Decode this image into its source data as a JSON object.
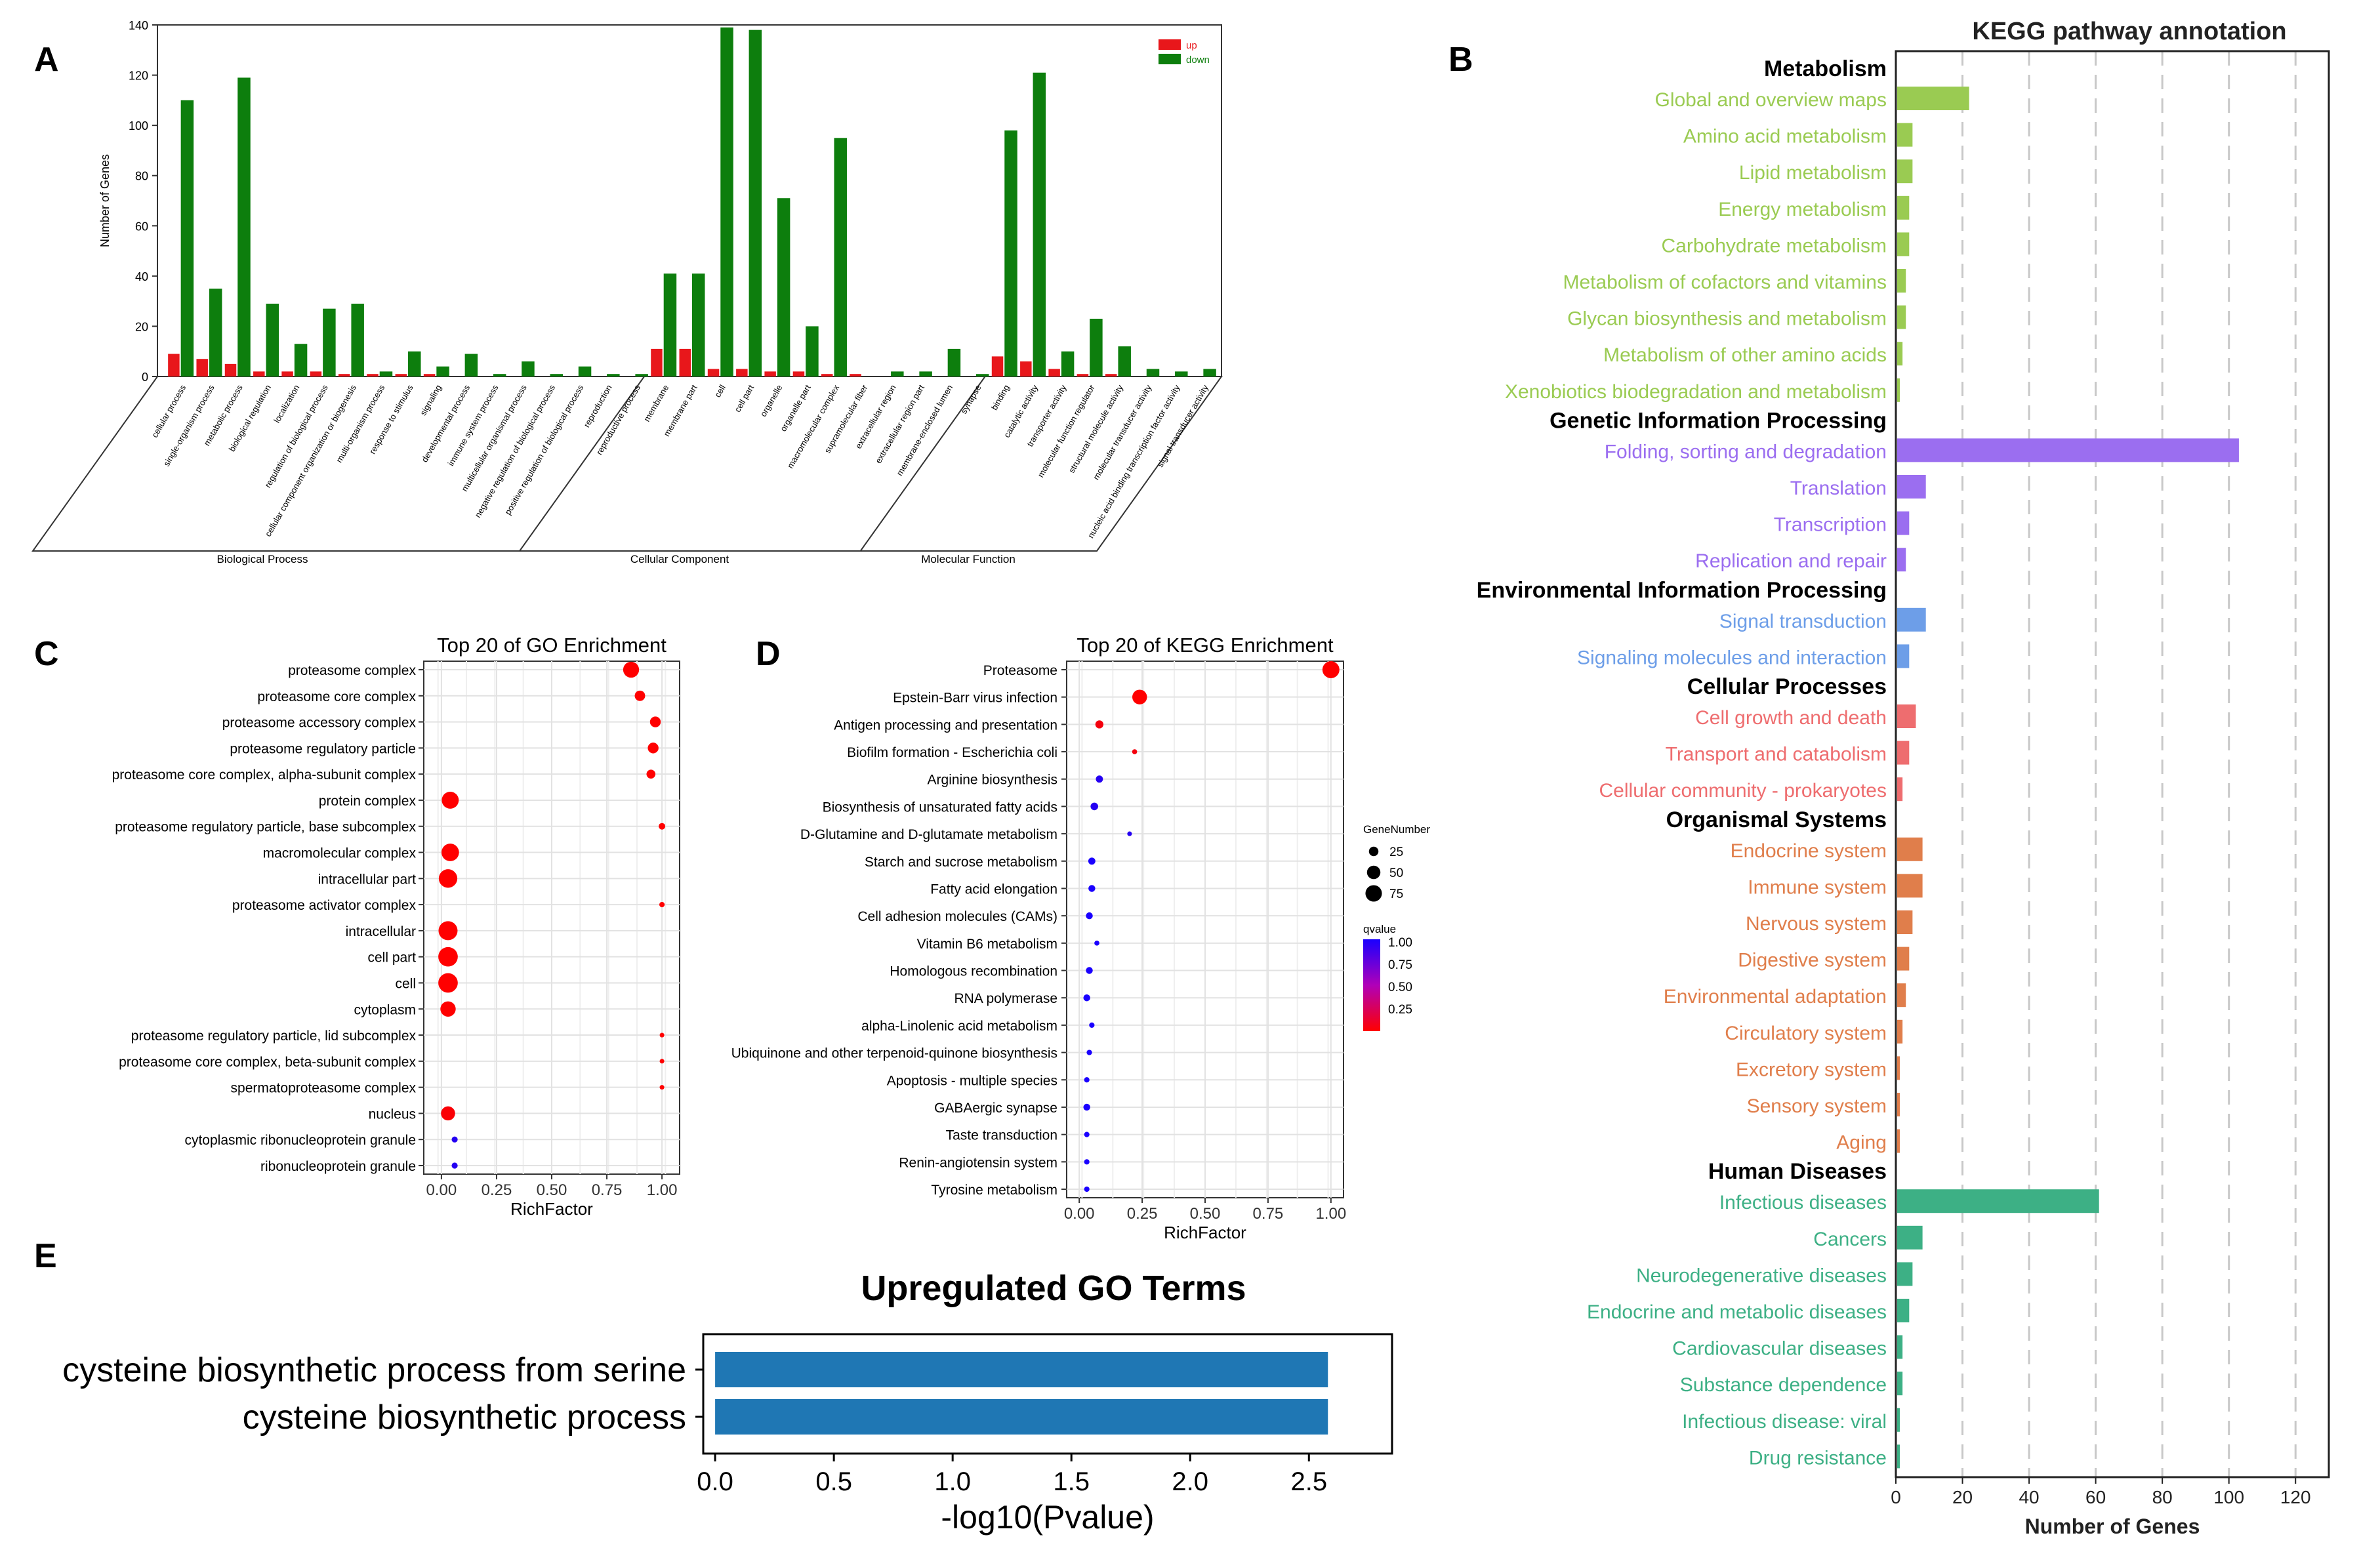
{
  "panel_labels": [
    "A",
    "B",
    "C",
    "D",
    "E"
  ],
  "colors": {
    "up": "#e8171b",
    "down": "#0d7e0d",
    "metabolism": "#9acb52",
    "genetic": "#9b6ef0",
    "environmental": "#6d9ee8",
    "cellular": "#ee6d6f",
    "organismal": "#e07e4b",
    "human": "#3db085",
    "go_bar": "#1f77b4",
    "dot_low": "#ff0000",
    "dot_high": "#1a00ff"
  },
  "chart_data": [
    {
      "id": "A",
      "type": "bar",
      "ylabel": "Number of Genes",
      "ylim": [
        0,
        140
      ],
      "yticks": [
        "0",
        "20",
        "40",
        "60",
        "80",
        "100",
        "120",
        "140"
      ],
      "legend": [
        "up",
        "down"
      ],
      "groups": [
        "Biological Process",
        "Cellular Component",
        "Molecular Function"
      ],
      "categories": [
        "cellular process",
        "single-organism process",
        "metabolic process",
        "biological regulation",
        "localization",
        "regulation of biological process",
        "cellular component organization or biogenesis",
        "multi-organism process",
        "response to stimulus",
        "signaling",
        "developmental process",
        "immune system process",
        "multicellular organismal process",
        "negative regulation of biological process",
        "positive regulation of biological process",
        "reproduction",
        "reproductive process",
        "membrane",
        "membrane part",
        "cell",
        "cell part",
        "organelle",
        "organelle part",
        "macromolecular complex",
        "supramolecular fiber",
        "extracellular region",
        "extracellular region part",
        "membrane-enclosed lumen",
        "synapse",
        "binding",
        "catalytic activity",
        "transporter activity",
        "molecular function regulator",
        "structural molecule activity",
        "molecular transducer activity",
        "nucleic acid binding transcription factor activity",
        "signal transducer activity"
      ],
      "category_group": [
        0,
        0,
        0,
        0,
        0,
        0,
        0,
        0,
        0,
        0,
        0,
        0,
        0,
        0,
        0,
        0,
        0,
        1,
        1,
        1,
        1,
        1,
        1,
        1,
        1,
        1,
        1,
        1,
        1,
        2,
        2,
        2,
        2,
        2,
        2,
        2,
        2
      ],
      "series": [
        {
          "name": "up",
          "values": [
            9,
            7,
            5,
            2,
            2,
            2,
            1,
            1,
            1,
            1,
            0,
            0,
            0,
            0,
            0,
            0,
            0,
            11,
            11,
            3,
            3,
            2,
            2,
            1,
            1,
            0,
            0,
            0,
            0,
            8,
            6,
            3,
            1,
            1,
            0,
            0,
            0
          ]
        },
        {
          "name": "down",
          "values": [
            110,
            35,
            119,
            29,
            13,
            27,
            29,
            2,
            10,
            4,
            9,
            1,
            6,
            1,
            4,
            1,
            1,
            41,
            41,
            139,
            138,
            71,
            20,
            95,
            0,
            2,
            2,
            11,
            1,
            98,
            121,
            10,
            23,
            12,
            3,
            2,
            3
          ]
        }
      ]
    },
    {
      "id": "B",
      "type": "bar",
      "title": "KEGG pathway annotation",
      "xlabel": "Number of Genes",
      "xlim": [
        0,
        130
      ],
      "xticks": [
        "0",
        "20",
        "40",
        "60",
        "80",
        "100",
        "120"
      ],
      "groups": [
        {
          "name": "Metabolism",
          "color_key": "metabolism",
          "items": [
            {
              "label": "Global and overview maps",
              "value": 22
            },
            {
              "label": "Amino acid metabolism",
              "value": 5
            },
            {
              "label": "Lipid metabolism",
              "value": 5
            },
            {
              "label": "Energy metabolism",
              "value": 4
            },
            {
              "label": "Carbohydrate metabolism",
              "value": 4
            },
            {
              "label": "Metabolism of cofactors and vitamins",
              "value": 3
            },
            {
              "label": "Glycan biosynthesis and metabolism",
              "value": 3
            },
            {
              "label": "Metabolism of other amino acids",
              "value": 2
            },
            {
              "label": "Xenobiotics biodegradation and metabolism",
              "value": 1
            }
          ]
        },
        {
          "name": "Genetic Information Processing",
          "color_key": "genetic",
          "items": [
            {
              "label": "Folding, sorting and degradation",
              "value": 103
            },
            {
              "label": "Translation",
              "value": 9
            },
            {
              "label": "Transcription",
              "value": 4
            },
            {
              "label": "Replication and repair",
              "value": 3
            }
          ]
        },
        {
          "name": "Environmental Information Processing",
          "color_key": "environmental",
          "items": [
            {
              "label": "Signal transduction",
              "value": 9
            },
            {
              "label": "Signaling molecules and interaction",
              "value": 4
            }
          ]
        },
        {
          "name": "Cellular Processes",
          "color_key": "cellular",
          "items": [
            {
              "label": "Cell growth and death",
              "value": 6
            },
            {
              "label": "Transport and catabolism",
              "value": 4
            },
            {
              "label": "Cellular community - prokaryotes",
              "value": 2
            }
          ]
        },
        {
          "name": "Organismal Systems",
          "color_key": "organismal",
          "items": [
            {
              "label": "Endocrine system",
              "value": 8
            },
            {
              "label": "Immune system",
              "value": 8
            },
            {
              "label": "Nervous system",
              "value": 5
            },
            {
              "label": "Digestive system",
              "value": 4
            },
            {
              "label": "Environmental adaptation",
              "value": 3
            },
            {
              "label": "Circulatory system",
              "value": 2
            },
            {
              "label": "Excretory system",
              "value": 1
            },
            {
              "label": "Sensory system",
              "value": 1
            },
            {
              "label": "Aging",
              "value": 1
            }
          ]
        },
        {
          "name": "Human Diseases",
          "color_key": "human",
          "items": [
            {
              "label": "Infectious diseases",
              "value": 61
            },
            {
              "label": "Cancers",
              "value": 8
            },
            {
              "label": "Neurodegenerative diseases",
              "value": 5
            },
            {
              "label": "Endocrine and metabolic diseases",
              "value": 4
            },
            {
              "label": "Cardiovascular diseases",
              "value": 2
            },
            {
              "label": "Substance dependence",
              "value": 2
            },
            {
              "label": "Infectious disease: viral",
              "value": 1
            },
            {
              "label": "Drug resistance",
              "value": 1
            }
          ]
        }
      ]
    },
    {
      "id": "C",
      "type": "scatter",
      "title": "Top 20 of GO Enrichment",
      "xlabel": "RichFactor",
      "xlim": [
        -0.08,
        1.08
      ],
      "xticks": [
        0,
        0.25,
        0.5,
        0.75,
        1.0
      ],
      "xtick_labels": [
        "0.00",
        "0.25",
        "0.50",
        "0.75",
        "1.00"
      ],
      "terms": [
        {
          "label": "proteasome complex",
          "x": 0.86,
          "genes": 70,
          "q": 0.0
        },
        {
          "label": "proteasome core complex",
          "x": 0.9,
          "genes": 30,
          "q": 0.0
        },
        {
          "label": "proteasome accessory complex",
          "x": 0.97,
          "genes": 32,
          "q": 0.0
        },
        {
          "label": "proteasome regulatory particle",
          "x": 0.96,
          "genes": 32,
          "q": 0.0
        },
        {
          "label": "proteasome core complex, alpha-subunit complex",
          "x": 0.95,
          "genes": 22,
          "q": 0.0
        },
        {
          "label": "protein complex",
          "x": 0.04,
          "genes": 80,
          "q": 0.0
        },
        {
          "label": "proteasome regulatory particle, base subcomplex",
          "x": 1.0,
          "genes": 12,
          "q": 0.0
        },
        {
          "label": "macromolecular complex",
          "x": 0.04,
          "genes": 85,
          "q": 0.0
        },
        {
          "label": "intracellular part",
          "x": 0.03,
          "genes": 95,
          "q": 0.0
        },
        {
          "label": "proteasome activator complex",
          "x": 1.0,
          "genes": 8,
          "q": 0.0
        },
        {
          "label": "intracellular",
          "x": 0.03,
          "genes": 100,
          "q": 0.0
        },
        {
          "label": "cell part",
          "x": 0.03,
          "genes": 105,
          "q": 0.0
        },
        {
          "label": "cell",
          "x": 0.03,
          "genes": 105,
          "q": 0.0
        },
        {
          "label": "cytoplasm",
          "x": 0.03,
          "genes": 65,
          "q": 0.0
        },
        {
          "label": "proteasome regulatory particle, lid subcomplex",
          "x": 1.0,
          "genes": 6,
          "q": 0.0
        },
        {
          "label": "proteasome core complex, beta-subunit complex",
          "x": 1.0,
          "genes": 6,
          "q": 0.0
        },
        {
          "label": "spermatoproteasome complex",
          "x": 1.0,
          "genes": 6,
          "q": 0.0
        },
        {
          "label": "nucleus",
          "x": 0.03,
          "genes": 55,
          "q": 0.02
        },
        {
          "label": "cytoplasmic ribonucleoprotein granule",
          "x": 0.06,
          "genes": 10,
          "q": 0.95
        },
        {
          "label": "ribonucleoprotein granule",
          "x": 0.06,
          "genes": 10,
          "q": 0.95
        }
      ]
    },
    {
      "id": "D",
      "type": "scatter",
      "title": "Top 20 of KEGG Enrichment",
      "xlabel": "RichFactor",
      "xlim": [
        -0.05,
        1.05
      ],
      "xticks": [
        0,
        0.25,
        0.5,
        0.75,
        1.0
      ],
      "xtick_labels": [
        "0.00",
        "0.25",
        "0.50",
        "0.75",
        "1.00"
      ],
      "legend_size_title": "GeneNumber",
      "legend_size_values": [
        25,
        50,
        75
      ],
      "legend_color_title": "qvalue",
      "legend_color_ticks": [
        "1.00",
        "0.75",
        "0.50",
        "0.25"
      ],
      "terms": [
        {
          "label": "Proteasome",
          "x": 1.0,
          "genes": 80,
          "q": 0.0
        },
        {
          "label": "Epstein-Barr virus infection",
          "x": 0.24,
          "genes": 60,
          "q": 0.0
        },
        {
          "label": "Antigen processing and presentation",
          "x": 0.08,
          "genes": 18,
          "q": 0.05
        },
        {
          "label": "Biofilm formation - Escherichia coli",
          "x": 0.22,
          "genes": 7,
          "q": 0.05
        },
        {
          "label": "Arginine biosynthesis",
          "x": 0.08,
          "genes": 14,
          "q": 0.95
        },
        {
          "label": "Biosynthesis of unsaturated fatty acids",
          "x": 0.06,
          "genes": 16,
          "q": 0.95
        },
        {
          "label": "D-Glutamine and D-glutamate metabolism",
          "x": 0.2,
          "genes": 6,
          "q": 0.95
        },
        {
          "label": "Starch and sucrose metabolism",
          "x": 0.05,
          "genes": 14,
          "q": 1.0
        },
        {
          "label": "Fatty acid elongation",
          "x": 0.05,
          "genes": 13,
          "q": 1.0
        },
        {
          "label": "Cell adhesion molecules (CAMs)",
          "x": 0.04,
          "genes": 13,
          "q": 1.0
        },
        {
          "label": "Vitamin B6 metabolism",
          "x": 0.07,
          "genes": 7,
          "q": 1.0
        },
        {
          "label": "Homologous recombination",
          "x": 0.04,
          "genes": 13,
          "q": 1.0
        },
        {
          "label": "RNA polymerase",
          "x": 0.03,
          "genes": 13,
          "q": 1.0
        },
        {
          "label": "alpha-Linolenic acid metabolism",
          "x": 0.05,
          "genes": 8,
          "q": 1.0
        },
        {
          "label": "Ubiquinone and other terpenoid-quinone biosynthesis",
          "x": 0.04,
          "genes": 8,
          "q": 1.0
        },
        {
          "label": "Apoptosis - multiple species",
          "x": 0.03,
          "genes": 8,
          "q": 1.0
        },
        {
          "label": "GABAergic synapse",
          "x": 0.03,
          "genes": 13,
          "q": 1.0
        },
        {
          "label": "Taste transduction",
          "x": 0.03,
          "genes": 8,
          "q": 1.0
        },
        {
          "label": "Renin-angiotensin system",
          "x": 0.03,
          "genes": 8,
          "q": 1.0
        },
        {
          "label": "Tyrosine metabolism",
          "x": 0.03,
          "genes": 8,
          "q": 1.0
        }
      ]
    },
    {
      "id": "E",
      "type": "bar",
      "title": "Upregulated GO Terms",
      "xlabel": "-log10(Pvalue)",
      "xlim": [
        -0.05,
        2.85
      ],
      "xticks": [
        0,
        0.5,
        1.0,
        1.5,
        2.0,
        2.5
      ],
      "xtick_labels": [
        "0.0",
        "0.5",
        "1.0",
        "1.5",
        "2.0",
        "2.5"
      ],
      "categories": [
        "cysteine biosynthetic process from serine",
        "cysteine biosynthetic process"
      ],
      "values": [
        2.58,
        2.58
      ]
    }
  ]
}
